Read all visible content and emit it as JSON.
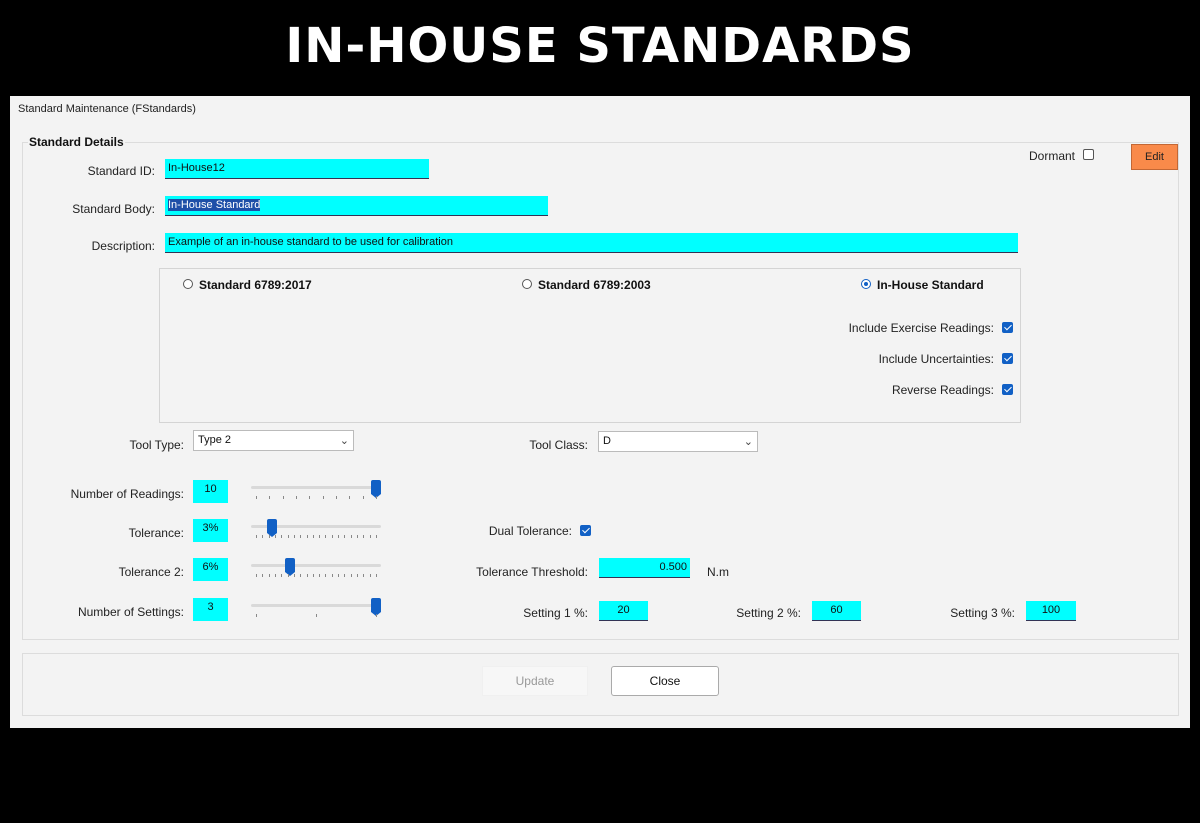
{
  "banner_title": "IN-HOUSE STANDARDS",
  "window": {
    "title": "Standard Maintenance (FStandards)"
  },
  "group_title": "Standard Details",
  "dormant": {
    "label": "Dormant",
    "checked": false
  },
  "edit_label": "Edit",
  "standard_id": {
    "label": "Standard ID:",
    "value": "In-House12"
  },
  "standard_body": {
    "label": "Standard Body:",
    "value": "In-House Standard"
  },
  "description": {
    "label": "Description:",
    "value": "Example of an in-house standard to be used for calibration"
  },
  "radios": [
    {
      "label": "Standard 6789:2017",
      "checked": false
    },
    {
      "label": "Standard 6789:2003",
      "checked": false
    },
    {
      "label": "In-House Standard",
      "checked": true
    }
  ],
  "options": [
    {
      "label": "Include Exercise Readings:",
      "checked": true
    },
    {
      "label": "Include Uncertainties:",
      "checked": true
    },
    {
      "label": "Reverse Readings:",
      "checked": true
    }
  ],
  "tool_type": {
    "label": "Tool Type:",
    "value": "Type 2"
  },
  "tool_class": {
    "label": "Tool Class:",
    "value": "D"
  },
  "number_of_readings": {
    "label": "Number of Readings:",
    "value": "10",
    "slider_fraction": 1.0
  },
  "tolerance": {
    "label": "Tolerance:",
    "value": "3%",
    "slider_fraction": 0.13
  },
  "tolerance2": {
    "label": "Tolerance 2:",
    "value": "6%",
    "slider_fraction": 0.28
  },
  "number_of_settings": {
    "label": "Number of Settings:",
    "value": "3",
    "slider_fraction": 1.0
  },
  "dual_tolerance": {
    "label": "Dual Tolerance:",
    "checked": true
  },
  "tolerance_threshold": {
    "label": "Tolerance Threshold:",
    "value": "0.500",
    "unit": "N.m"
  },
  "settings": [
    {
      "label": "Setting 1 %:",
      "value": "20"
    },
    {
      "label": "Setting 2 %:",
      "value": "60"
    },
    {
      "label": "Setting 3 %:",
      "value": "100"
    }
  ],
  "buttons": {
    "update": "Update",
    "close": "Close"
  },
  "colors": {
    "field_bg": "#00ffff",
    "accent": "#1160c5",
    "edit_bg": "#f98a4a"
  }
}
